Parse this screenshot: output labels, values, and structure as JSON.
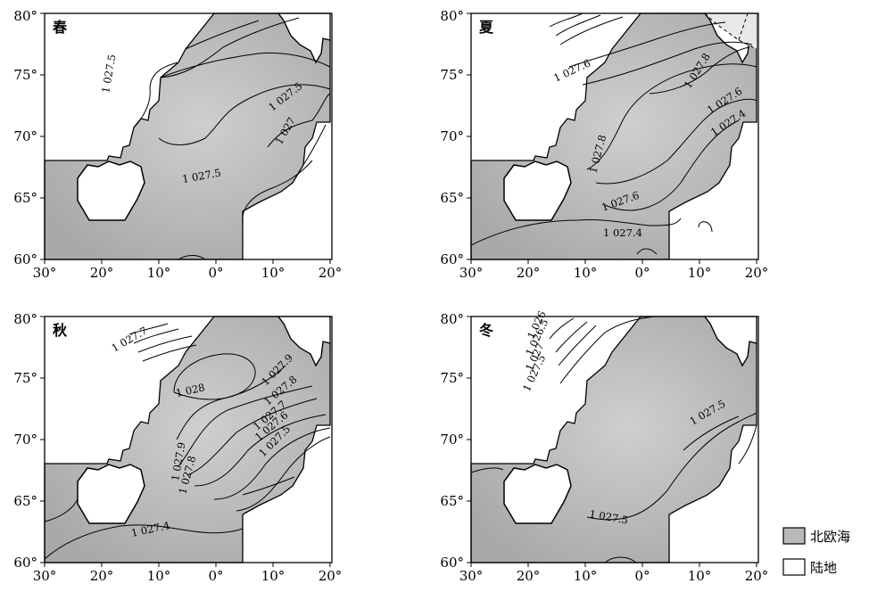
{
  "lat_ticks": [
    "80°",
    "75°",
    "70°",
    "65°",
    "60°"
  ],
  "lon_ticks": [
    "30°",
    "20°",
    "10°",
    "0°",
    "10°",
    "20°"
  ],
  "panels": [
    {
      "season": "春",
      "contours": [
        "1 027.5",
        "1 027.5",
        "1 027.5",
        "1 027"
      ]
    },
    {
      "season": "夏",
      "contours": [
        "1 027.6",
        "1 027.8",
        "1 027.6",
        "1 027.4",
        "1 027.8",
        "1 027.6",
        "1 027.4"
      ]
    },
    {
      "season": "秋",
      "contours": [
        "1 027.7",
        "1 028",
        "1 027.9",
        "1 027.8",
        "1 027.7",
        "1 027.6",
        "1 027.5",
        "1 027.9",
        "1 027.8",
        "1 027.4"
      ]
    },
    {
      "season": "冬",
      "contours": [
        "1 026",
        "1 026.5",
        "1 027",
        "1 027.5",
        "1 027.5",
        "1 027.5"
      ]
    }
  ],
  "legend": {
    "sea_label": "北欧海",
    "land_label": "陆地"
  },
  "colors": {
    "sea": "#b9b9b9",
    "sea_light": "#cfcfcf",
    "land": "#ffffff",
    "line": "#000000"
  }
}
